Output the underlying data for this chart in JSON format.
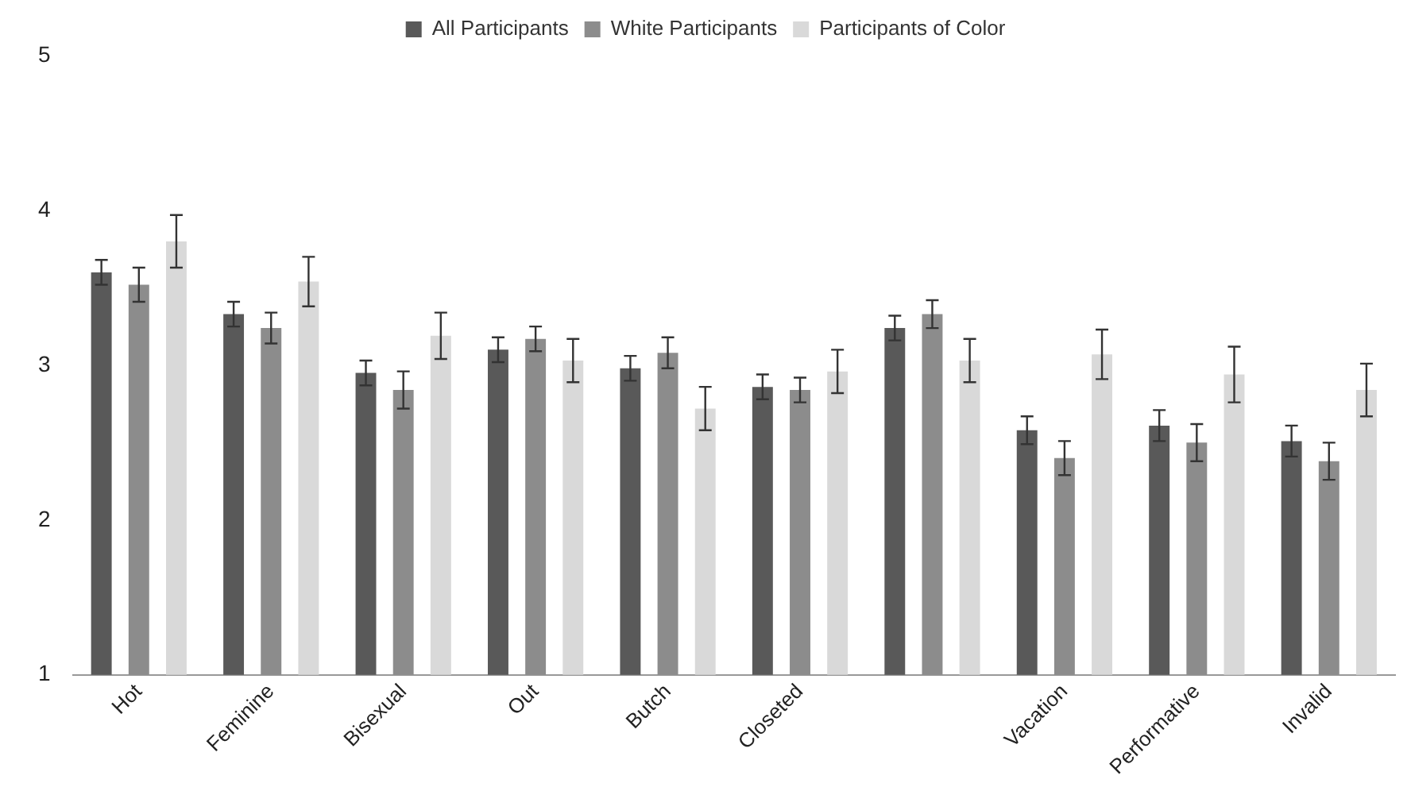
{
  "chart_data": {
    "type": "bar",
    "categories": [
      "Hot",
      "Feminine",
      "Bisexual",
      "Out",
      "Butch",
      "Closeted",
      null,
      "Vacation",
      "Performative",
      "Invalid"
    ],
    "series": [
      {
        "name": "All Participants",
        "color": "#595959",
        "values": [
          3.6,
          3.33,
          2.95,
          3.1,
          2.98,
          2.86,
          3.24,
          2.58,
          2.61,
          2.51
        ],
        "errors": [
          0.08,
          0.08,
          0.08,
          0.08,
          0.08,
          0.08,
          0.08,
          0.09,
          0.1,
          0.1
        ]
      },
      {
        "name": "White Participants",
        "color": "#8c8c8c",
        "values": [
          3.52,
          3.24,
          2.84,
          3.17,
          3.08,
          2.84,
          3.33,
          2.4,
          2.5,
          2.38
        ],
        "errors": [
          0.11,
          0.1,
          0.12,
          0.08,
          0.1,
          0.08,
          0.09,
          0.11,
          0.12,
          0.12
        ]
      },
      {
        "name": "Participants of Color",
        "color": "#d9d9d9",
        "values": [
          3.8,
          3.54,
          3.19,
          3.03,
          2.72,
          2.96,
          3.03,
          3.07,
          2.94,
          2.84
        ],
        "errors": [
          0.17,
          0.16,
          0.15,
          0.14,
          0.14,
          0.14,
          0.14,
          0.16,
          0.18,
          0.17
        ]
      }
    ],
    "ylim": [
      1,
      5
    ],
    "yticks": [
      1,
      2,
      3,
      4,
      5
    ],
    "grid": false,
    "legend": "top"
  }
}
